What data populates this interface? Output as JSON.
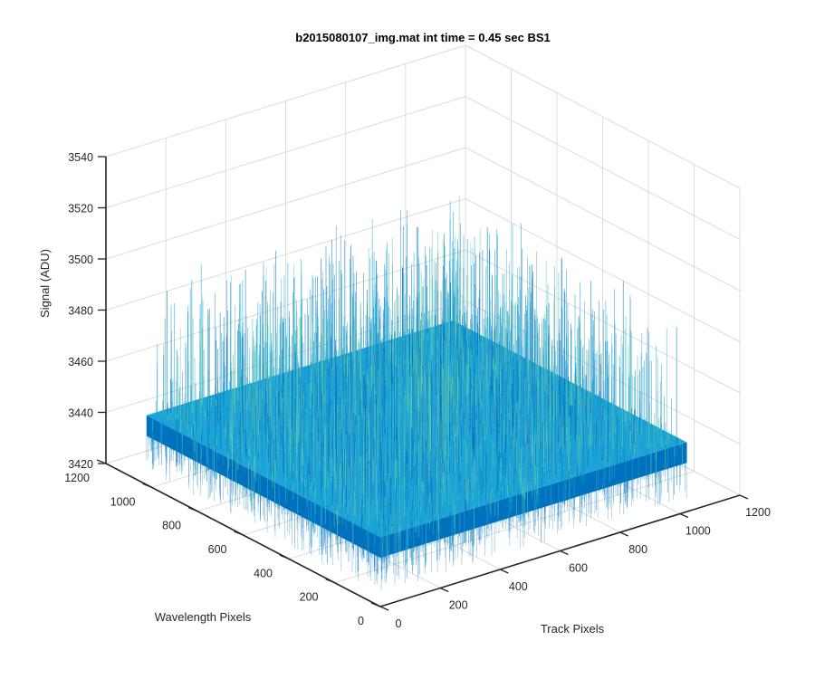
{
  "chart_data": {
    "type": "surface",
    "title": "b2015080107_img.mat int time = 0.45 sec   BS1",
    "xlabel": "Track Pixels",
    "ylabel": "Wavelength Pixels",
    "zlabel": "Signal (ADU)",
    "xlim": [
      0,
      1200
    ],
    "ylim": [
      0,
      1200
    ],
    "zlim": [
      3420,
      3540
    ],
    "xticks": [
      "0",
      "200",
      "400",
      "600",
      "800",
      "1000",
      "1200"
    ],
    "yticks": [
      "0",
      "200",
      "400",
      "600",
      "800",
      "1000",
      "1200"
    ],
    "zticks": [
      "3420",
      "3440",
      "3460",
      "3480",
      "3500",
      "3520",
      "3540"
    ],
    "surface": {
      "x_range": [
        1,
        1024
      ],
      "y_range": [
        1,
        1024
      ],
      "mean_signal": 3447,
      "noise_range": [
        3425,
        3500
      ],
      "colormap": "parula"
    },
    "grid": true,
    "view": "3d-isometric"
  },
  "colors": {
    "axis": "#262626",
    "grid": "#dcdcdc",
    "surface_low": "#0072bd",
    "surface_mid": "#1aa5d6",
    "surface_high": "#6fcfa0"
  }
}
